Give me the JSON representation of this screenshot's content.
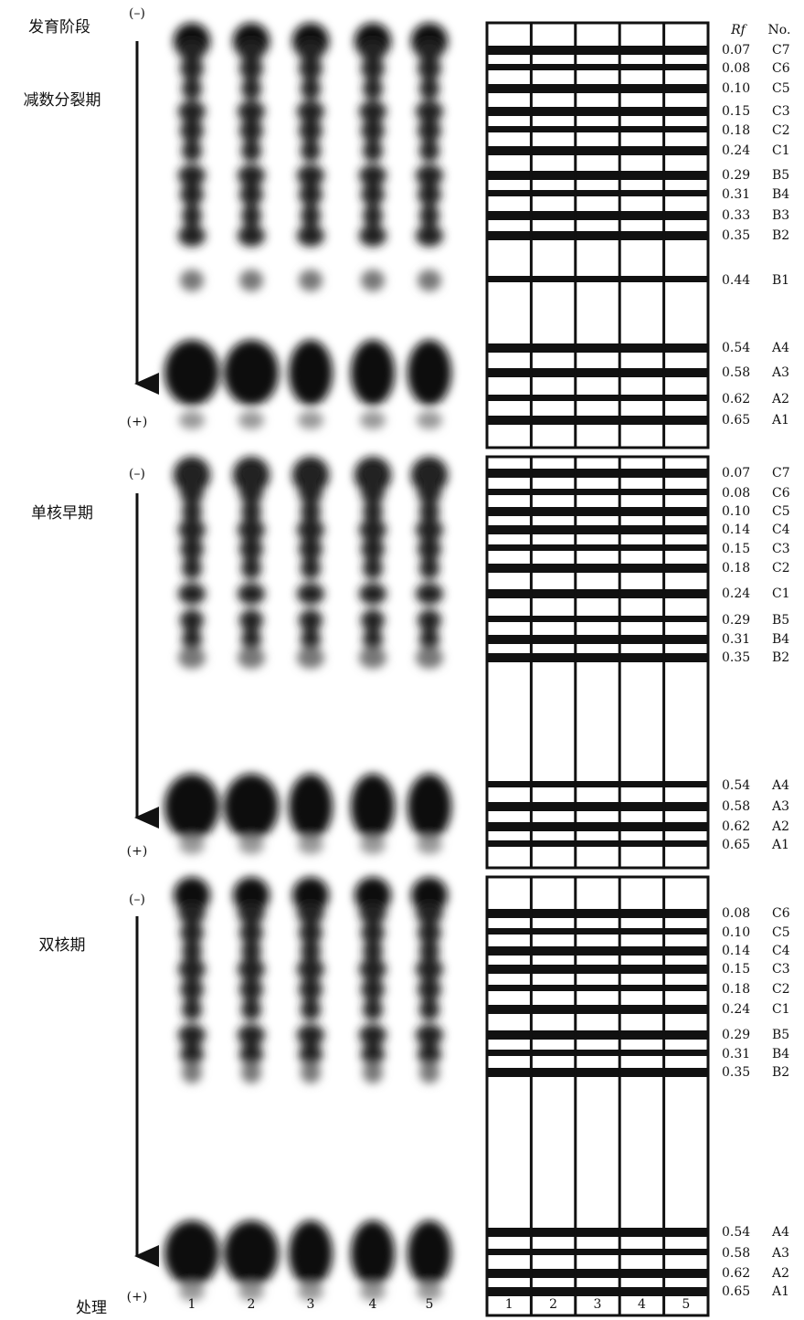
{
  "header": {
    "stage_heading": "发育阶段",
    "rf_heading": "Rf",
    "no_heading": "No.",
    "treatment_label": "处理"
  },
  "panels": [
    {
      "stage": "减数分裂期",
      "minus": "(–)",
      "plus": "(+)",
      "bands": [
        {
          "rf": "0.07",
          "no": "C7"
        },
        {
          "rf": "0.08",
          "no": "C6"
        },
        {
          "rf": "0.10",
          "no": "C5"
        },
        {
          "rf": "0.15",
          "no": "C3"
        },
        {
          "rf": "0.18",
          "no": "C2"
        },
        {
          "rf": "0.24",
          "no": "C1"
        },
        {
          "rf": "0.29",
          "no": "B5"
        },
        {
          "rf": "0.31",
          "no": "B4"
        },
        {
          "rf": "0.33",
          "no": "B3"
        },
        {
          "rf": "0.35",
          "no": "B2"
        },
        {
          "rf": "0.44",
          "no": "B1"
        },
        {
          "rf": "0.54",
          "no": "A4"
        },
        {
          "rf": "0.58",
          "no": "A3"
        },
        {
          "rf": "0.62",
          "no": "A2"
        },
        {
          "rf": "0.65",
          "no": "A1"
        }
      ]
    },
    {
      "stage": "单核早期",
      "minus": "(–)",
      "plus": "(+)",
      "bands": [
        {
          "rf": "0.07",
          "no": "C7"
        },
        {
          "rf": "0.08",
          "no": "C6"
        },
        {
          "rf": "0.10",
          "no": "C5"
        },
        {
          "rf": "0.14",
          "no": "C4"
        },
        {
          "rf": "0.15",
          "no": "C3"
        },
        {
          "rf": "0.18",
          "no": "C2"
        },
        {
          "rf": "0.24",
          "no": "C1"
        },
        {
          "rf": "0.29",
          "no": "B5"
        },
        {
          "rf": "0.31",
          "no": "B4"
        },
        {
          "rf": "0.35",
          "no": "B2"
        },
        {
          "rf": "0.54",
          "no": "A4"
        },
        {
          "rf": "0.58",
          "no": "A3"
        },
        {
          "rf": "0.62",
          "no": "A2"
        },
        {
          "rf": "0.65",
          "no": "A1"
        }
      ]
    },
    {
      "stage": "双核期",
      "minus": "(–)",
      "plus": "(+)",
      "bands": [
        {
          "rf": "0.08",
          "no": "C6"
        },
        {
          "rf": "0.10",
          "no": "C5"
        },
        {
          "rf": "0.14",
          "no": "C4"
        },
        {
          "rf": "0.15",
          "no": "C3"
        },
        {
          "rf": "0.18",
          "no": "C2"
        },
        {
          "rf": "0.24",
          "no": "C1"
        },
        {
          "rf": "0.29",
          "no": "B5"
        },
        {
          "rf": "0.31",
          "no": "B4"
        },
        {
          "rf": "0.35",
          "no": "B2"
        },
        {
          "rf": "0.54",
          "no": "A4"
        },
        {
          "rf": "0.58",
          "no": "A3"
        },
        {
          "rf": "0.62",
          "no": "A2"
        },
        {
          "rf": "0.65",
          "no": "A1"
        }
      ]
    }
  ],
  "gel_lanes": [
    "1",
    "2",
    "3",
    "4",
    "5"
  ],
  "diagram_lanes": [
    "1",
    "2",
    "3",
    "4",
    "5"
  ]
}
